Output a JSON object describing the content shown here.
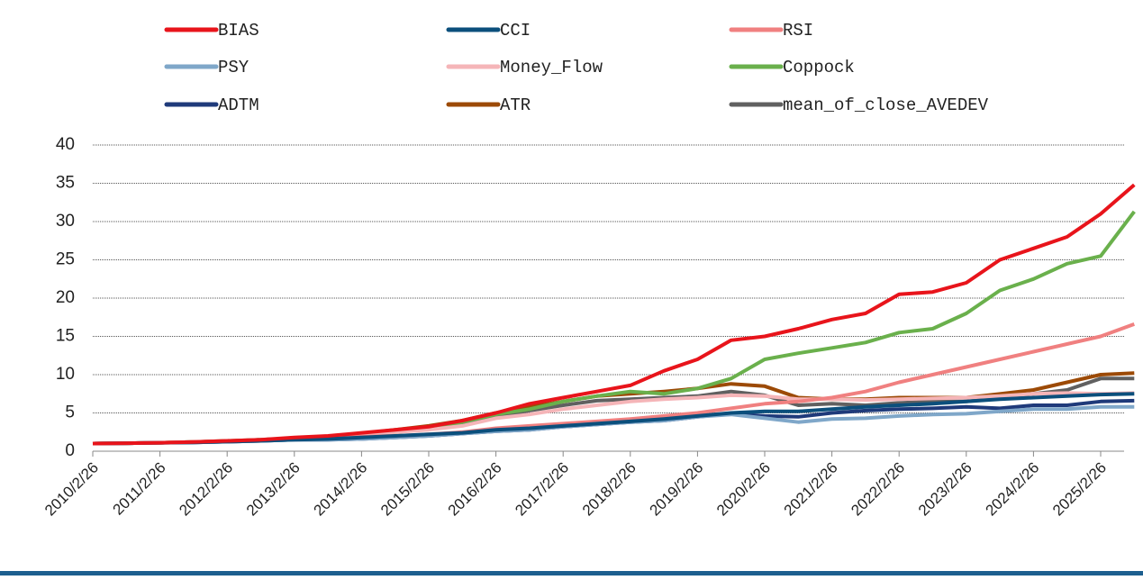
{
  "chart_data": {
    "type": "line",
    "categories": [
      "2010/2/26",
      null,
      "2011/2/26",
      null,
      "2012/2/26",
      null,
      "2013/2/26",
      null,
      "2014/2/26",
      null,
      "2015/2/26",
      null,
      "2016/2/26",
      null,
      "2017/2/26",
      null,
      "2018/2/26",
      null,
      "2019/2/26",
      null,
      "2020/2/26",
      null,
      "2021/2/26",
      null,
      "2022/2/26",
      null,
      "2023/2/26",
      null,
      "2024/2/26",
      null,
      "2025/2/26",
      null
    ],
    "ylim": [
      0,
      40
    ],
    "yticks": [
      0,
      5,
      10,
      15,
      20,
      25,
      30,
      35,
      40
    ],
    "grid": true,
    "series": [
      {
        "name": "BIAS",
        "color": "#e8141b",
        "values": [
          1.0,
          1.05,
          1.1,
          1.2,
          1.35,
          1.5,
          1.8,
          2.0,
          2.4,
          2.8,
          3.2,
          4.0,
          5.0,
          6.2,
          7.0,
          7.8,
          8.6,
          10.5,
          12.0,
          14.5,
          15.0,
          16.0,
          17.2,
          18.0,
          20.5,
          20.8,
          22.0,
          25.0,
          26.5,
          28.0,
          31.0,
          34.8
        ]
      },
      {
        "name": "CCI",
        "color": "#0b4f7c",
        "values": [
          1.0,
          1.05,
          1.1,
          1.15,
          1.25,
          1.35,
          1.5,
          1.6,
          1.8,
          2.0,
          2.2,
          2.4,
          2.8,
          3.0,
          3.3,
          3.6,
          3.9,
          4.2,
          4.6,
          5.0,
          5.2,
          5.2,
          5.5,
          5.8,
          6.0,
          6.2,
          6.5,
          6.8,
          7.0,
          7.2,
          7.4,
          7.5
        ]
      },
      {
        "name": "RSI",
        "color": "#f08080",
        "values": [
          1.0,
          1.05,
          1.1,
          1.2,
          1.3,
          1.4,
          1.6,
          1.7,
          1.9,
          2.0,
          2.2,
          2.5,
          3.0,
          3.3,
          3.6,
          3.9,
          4.2,
          4.6,
          5.0,
          5.6,
          6.2,
          6.5,
          7.0,
          7.8,
          9.0,
          10.0,
          11.0,
          12.0,
          13.0,
          14.0,
          15.0,
          16.6
        ]
      },
      {
        "name": "PSY",
        "color": "#7fa7c9",
        "values": [
          1.0,
          1.05,
          1.1,
          1.15,
          1.25,
          1.35,
          1.5,
          1.5,
          1.6,
          1.8,
          2.0,
          2.3,
          2.6,
          2.8,
          3.2,
          3.5,
          3.8,
          4.0,
          4.5,
          4.8,
          4.3,
          3.8,
          4.2,
          4.3,
          4.6,
          4.8,
          4.9,
          5.2,
          5.5,
          5.5,
          5.8,
          5.8
        ]
      },
      {
        "name": "Money_Flow",
        "color": "#f5b5b8",
        "values": [
          1.0,
          1.05,
          1.1,
          1.2,
          1.3,
          1.5,
          1.7,
          1.9,
          2.2,
          2.5,
          2.8,
          3.3,
          4.3,
          4.8,
          5.5,
          6.0,
          6.5,
          6.8,
          7.0,
          7.3,
          7.2,
          6.8,
          6.8,
          6.7,
          6.8,
          6.9,
          7.0,
          7.2,
          7.5,
          7.6,
          7.5,
          7.6
        ]
      },
      {
        "name": "Coppock",
        "color": "#6ab04c",
        "values": [
          1.0,
          1.05,
          1.1,
          1.2,
          1.3,
          1.5,
          1.7,
          1.9,
          2.2,
          2.5,
          2.9,
          3.8,
          4.8,
          5.5,
          6.5,
          7.2,
          7.8,
          7.5,
          8.2,
          9.5,
          12.0,
          12.8,
          13.5,
          14.2,
          15.5,
          16.0,
          18.0,
          21.0,
          22.5,
          24.5,
          25.5,
          31.3
        ]
      },
      {
        "name": "ADTM",
        "color": "#1f3a7a",
        "values": [
          1.0,
          1.05,
          1.1,
          1.15,
          1.25,
          1.35,
          1.5,
          1.5,
          1.6,
          1.8,
          2.0,
          2.3,
          2.6,
          2.8,
          3.2,
          3.5,
          3.8,
          4.0,
          4.5,
          4.9,
          4.6,
          4.5,
          5.0,
          5.3,
          5.5,
          5.6,
          5.8,
          5.6,
          6.0,
          6.0,
          6.5,
          6.6
        ]
      },
      {
        "name": "ATR",
        "color": "#9c4a06",
        "values": [
          1.0,
          1.05,
          1.1,
          1.2,
          1.35,
          1.5,
          1.7,
          1.9,
          2.3,
          2.8,
          3.3,
          4.0,
          5.0,
          5.8,
          6.5,
          7.2,
          7.5,
          7.8,
          8.2,
          8.8,
          8.5,
          7.0,
          6.8,
          6.8,
          7.0,
          7.0,
          7.0,
          7.5,
          8.0,
          9.0,
          10.0,
          10.2
        ]
      },
      {
        "name": "mean_of_close_AVEDEV",
        "color": "#606060",
        "values": [
          1.0,
          1.05,
          1.1,
          1.2,
          1.3,
          1.5,
          1.7,
          1.9,
          2.2,
          2.6,
          3.0,
          3.6,
          4.5,
          5.3,
          6.0,
          6.6,
          6.8,
          7.0,
          7.2,
          7.8,
          7.3,
          6.0,
          6.2,
          6.0,
          6.3,
          6.5,
          6.5,
          7.0,
          7.5,
          8.0,
          9.5,
          9.5
        ]
      }
    ]
  }
}
